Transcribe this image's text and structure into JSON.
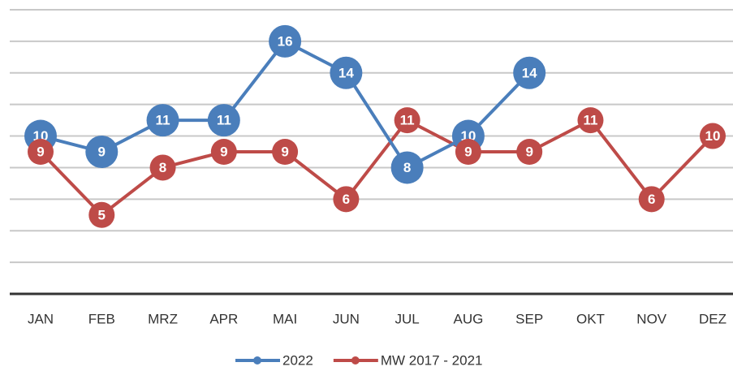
{
  "chart_data": {
    "type": "line",
    "categories": [
      "JAN",
      "FEB",
      "MRZ",
      "APR",
      "MAI",
      "JUN",
      "JUL",
      "AUG",
      "SEP",
      "OKT",
      "NOV",
      "DEZ"
    ],
    "series": [
      {
        "name": "2022",
        "color": "#4a7ebb",
        "values": [
          10,
          9,
          11,
          11,
          16,
          14,
          8,
          10,
          14,
          null,
          null,
          null
        ]
      },
      {
        "name": "MW 2017 - 2021",
        "color": "#be4b48",
        "values": [
          9,
          5,
          8,
          9,
          9,
          6,
          11,
          9,
          9,
          11,
          6,
          10
        ]
      }
    ],
    "ylim": [
      0,
      18
    ],
    "yticks": [
      0,
      2,
      4,
      6,
      8,
      10,
      12,
      14,
      16,
      18
    ],
    "grid": true,
    "legend": "bottom"
  }
}
